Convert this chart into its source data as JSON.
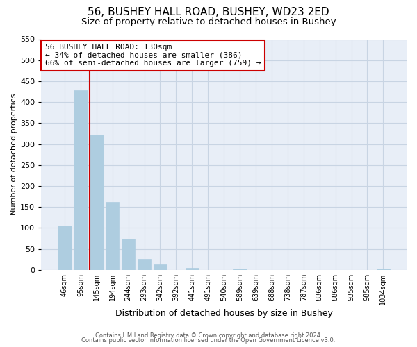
{
  "title": "56, BUSHEY HALL ROAD, BUSHEY, WD23 2ED",
  "subtitle": "Size of property relative to detached houses in Bushey",
  "xlabel": "Distribution of detached houses by size in Bushey",
  "ylabel": "Number of detached properties",
  "categories": [
    "46sqm",
    "95sqm",
    "145sqm",
    "194sqm",
    "244sqm",
    "293sqm",
    "342sqm",
    "392sqm",
    "441sqm",
    "491sqm",
    "540sqm",
    "589sqm",
    "639sqm",
    "688sqm",
    "738sqm",
    "787sqm",
    "836sqm",
    "886sqm",
    "935sqm",
    "985sqm",
    "1034sqm"
  ],
  "values": [
    105,
    428,
    322,
    162,
    75,
    27,
    13,
    0,
    5,
    0,
    0,
    3,
    0,
    0,
    0,
    0,
    0,
    0,
    0,
    0,
    3
  ],
  "bar_color": "#aecde0",
  "bar_edge_color": "#aecde0",
  "vline_index": 2,
  "vline_color": "#cc0000",
  "ylim": [
    0,
    550
  ],
  "yticks": [
    0,
    50,
    100,
    150,
    200,
    250,
    300,
    350,
    400,
    450,
    500,
    550
  ],
  "annotation_line1": "56 BUSHEY HALL ROAD: 130sqm",
  "annotation_line2": "← 34% of detached houses are smaller (386)",
  "annotation_line3": "66% of semi-detached houses are larger (759) →",
  "annotation_box_color": "#ffffff",
  "annotation_box_edge": "#cc0000",
  "footer1": "Contains HM Land Registry data © Crown copyright and database right 2024.",
  "footer2": "Contains public sector information licensed under the Open Government Licence v3.0.",
  "figure_bg_color": "#ffffff",
  "plot_bg_color": "#e8eef7",
  "grid_color": "#c8d4e3",
  "title_fontsize": 11,
  "subtitle_fontsize": 9.5,
  "ylabel_fontsize": 8,
  "xlabel_fontsize": 9,
  "tick_fontsize": 8,
  "xtick_fontsize": 7,
  "footer_fontsize": 6,
  "annotation_fontsize": 8
}
